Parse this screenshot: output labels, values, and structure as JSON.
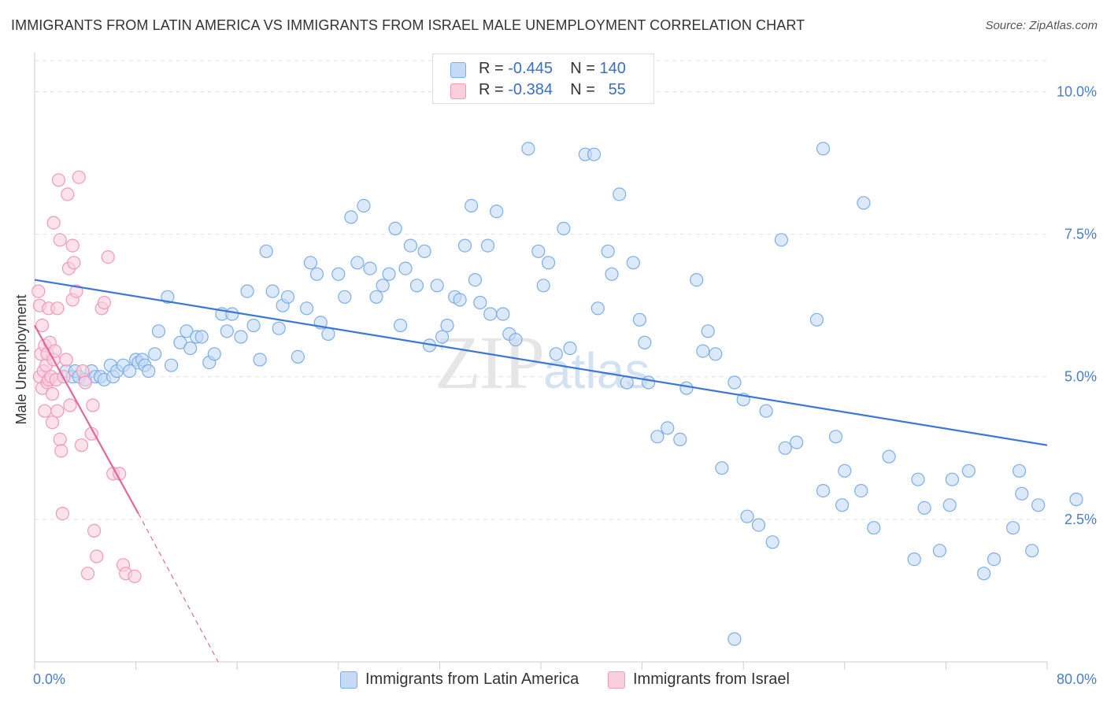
{
  "title": "IMMIGRANTS FROM LATIN AMERICA VS IMMIGRANTS FROM ISRAEL MALE UNEMPLOYMENT CORRELATION CHART",
  "source": "Source: ZipAtlas.com",
  "watermark": {
    "zip": "ZIP",
    "atlas": "atlas"
  },
  "legend": [
    {
      "r_label": "R =",
      "r_value": "-0.445",
      "n_label": "N =",
      "n_value": "140"
    },
    {
      "r_label": "R =",
      "r_value": "-0.384",
      "n_label": "N =",
      "n_value": "55"
    }
  ],
  "chart_data": {
    "type": "scatter",
    "title": "IMMIGRANTS FROM LATIN AMERICA VS IMMIGRANTS FROM ISRAEL MALE UNEMPLOYMENT CORRELATION CHART",
    "xlabel": "",
    "ylabel": "Male Unemployment",
    "xlim": [
      0,
      80
    ],
    "ylim": [
      0,
      10.6
    ],
    "x_tick_labels": [
      "0.0%",
      "80.0%"
    ],
    "y_ticks": [
      2.5,
      5.0,
      7.5,
      10.0
    ],
    "y_tick_labels": [
      "2.5%",
      "5.0%",
      "7.5%",
      "10.0%"
    ],
    "grid": true,
    "legend_position": "top-center",
    "series": [
      {
        "name": "Immigrants from Latin America",
        "color": "#7baee8",
        "fill": "#c5daf5",
        "trend": {
          "x": [
            0,
            80
          ],
          "y": [
            6.7,
            3.8
          ],
          "color": "#3a78d4"
        },
        "points": [
          [
            2.5,
            5.1
          ],
          [
            3.0,
            5.0
          ],
          [
            3.2,
            5.1
          ],
          [
            3.5,
            5.0
          ],
          [
            4.0,
            4.95
          ],
          [
            4.5,
            5.1
          ],
          [
            4.8,
            5.0
          ],
          [
            5.2,
            5.0
          ],
          [
            5.5,
            4.95
          ],
          [
            6.0,
            5.2
          ],
          [
            6.2,
            5.0
          ],
          [
            6.5,
            5.1
          ],
          [
            7.0,
            5.2
          ],
          [
            7.5,
            5.1
          ],
          [
            8.0,
            5.3
          ],
          [
            8.2,
            5.25
          ],
          [
            8.5,
            5.3
          ],
          [
            8.7,
            5.2
          ],
          [
            9.0,
            5.1
          ],
          [
            9.5,
            5.4
          ],
          [
            9.8,
            5.8
          ],
          [
            10.5,
            6.4
          ],
          [
            10.8,
            5.2
          ],
          [
            11.5,
            5.6
          ],
          [
            12.0,
            5.8
          ],
          [
            12.3,
            5.5
          ],
          [
            12.8,
            5.7
          ],
          [
            13.2,
            5.7
          ],
          [
            13.8,
            5.25
          ],
          [
            14.2,
            5.4
          ],
          [
            14.8,
            6.1
          ],
          [
            15.2,
            5.8
          ],
          [
            15.6,
            6.1
          ],
          [
            16.3,
            5.7
          ],
          [
            16.8,
            6.5
          ],
          [
            17.3,
            5.9
          ],
          [
            17.8,
            5.3
          ],
          [
            18.3,
            7.2
          ],
          [
            18.8,
            6.5
          ],
          [
            19.3,
            5.85
          ],
          [
            19.6,
            6.25
          ],
          [
            20.0,
            6.4
          ],
          [
            20.8,
            5.35
          ],
          [
            21.5,
            6.2
          ],
          [
            21.8,
            7.0
          ],
          [
            22.3,
            6.8
          ],
          [
            22.6,
            5.95
          ],
          [
            23.2,
            5.75
          ],
          [
            24.0,
            6.8
          ],
          [
            24.5,
            6.4
          ],
          [
            25.0,
            7.8
          ],
          [
            25.5,
            7.0
          ],
          [
            26.0,
            8.0
          ],
          [
            26.5,
            6.9
          ],
          [
            27.0,
            6.4
          ],
          [
            27.5,
            6.6
          ],
          [
            28.0,
            6.8
          ],
          [
            28.5,
            7.6
          ],
          [
            28.9,
            5.9
          ],
          [
            29.3,
            6.9
          ],
          [
            29.7,
            7.3
          ],
          [
            30.2,
            6.6
          ],
          [
            30.8,
            7.2
          ],
          [
            31.2,
            5.55
          ],
          [
            31.8,
            6.6
          ],
          [
            32.2,
            5.7
          ],
          [
            32.6,
            5.9
          ],
          [
            33.2,
            6.4
          ],
          [
            33.6,
            6.35
          ],
          [
            34.0,
            7.3
          ],
          [
            34.5,
            8.0
          ],
          [
            34.8,
            6.7
          ],
          [
            35.2,
            6.3
          ],
          [
            35.8,
            7.3
          ],
          [
            36.0,
            6.1
          ],
          [
            36.5,
            7.9
          ],
          [
            37.0,
            6.1
          ],
          [
            37.5,
            5.75
          ],
          [
            38.0,
            5.65
          ],
          [
            39.0,
            9.0
          ],
          [
            39.8,
            7.2
          ],
          [
            40.2,
            6.6
          ],
          [
            40.6,
            7.0
          ],
          [
            41.2,
            5.4
          ],
          [
            41.8,
            7.6
          ],
          [
            42.3,
            5.5
          ],
          [
            43.5,
            8.9
          ],
          [
            44.2,
            8.9
          ],
          [
            44.5,
            6.2
          ],
          [
            45.3,
            7.2
          ],
          [
            45.6,
            6.8
          ],
          [
            46.2,
            8.2
          ],
          [
            46.8,
            4.9
          ],
          [
            47.3,
            7.0
          ],
          [
            47.8,
            6.0
          ],
          [
            48.2,
            5.6
          ],
          [
            48.5,
            4.9
          ],
          [
            49.2,
            3.95
          ],
          [
            50.0,
            4.1
          ],
          [
            51.0,
            3.9
          ],
          [
            51.5,
            4.8
          ],
          [
            52.3,
            6.7
          ],
          [
            52.8,
            5.45
          ],
          [
            53.2,
            5.8
          ],
          [
            53.8,
            5.4
          ],
          [
            54.3,
            3.4
          ],
          [
            55.3,
            4.9
          ],
          [
            56.0,
            4.6
          ],
          [
            56.3,
            2.55
          ],
          [
            57.2,
            2.4
          ],
          [
            57.8,
            4.4
          ],
          [
            58.3,
            2.1
          ],
          [
            59.0,
            7.4
          ],
          [
            59.3,
            3.75
          ],
          [
            60.2,
            3.85
          ],
          [
            61.8,
            6.0
          ],
          [
            62.3,
            9.0
          ],
          [
            62.3,
            3.0
          ],
          [
            63.3,
            3.95
          ],
          [
            63.8,
            2.75
          ],
          [
            64.0,
            3.35
          ],
          [
            65.3,
            3.0
          ],
          [
            65.5,
            8.05
          ],
          [
            66.3,
            2.35
          ],
          [
            67.5,
            3.6
          ],
          [
            69.5,
            1.8
          ],
          [
            69.8,
            3.2
          ],
          [
            70.3,
            2.7
          ],
          [
            71.5,
            1.95
          ],
          [
            72.3,
            2.75
          ],
          [
            72.5,
            3.2
          ],
          [
            73.8,
            3.35
          ],
          [
            75.0,
            1.55
          ],
          [
            75.8,
            1.8
          ],
          [
            77.3,
            2.35
          ],
          [
            77.8,
            3.35
          ],
          [
            78.0,
            2.95
          ],
          [
            78.8,
            1.95
          ],
          [
            79.3,
            2.75
          ],
          [
            82.3,
            2.85
          ],
          [
            55.3,
            0.4
          ]
        ]
      },
      {
        "name": "Immigrants from Israel",
        "color": "#f099b6",
        "fill": "#f9cfdd",
        "trend": {
          "x": [
            0,
            8.2
          ],
          "y": [
            5.9,
            2.6
          ],
          "color": "#e0679a"
        },
        "trend_extension": {
          "x": [
            8.2,
            14.5
          ],
          "y": [
            2.6,
            0.0
          ]
        },
        "points": [
          [
            0.3,
            6.5
          ],
          [
            0.4,
            6.25
          ],
          [
            0.4,
            5.0
          ],
          [
            0.5,
            5.4
          ],
          [
            0.6,
            4.8
          ],
          [
            0.6,
            5.9
          ],
          [
            0.7,
            5.1
          ],
          [
            0.8,
            4.4
          ],
          [
            0.8,
            5.55
          ],
          [
            0.9,
            5.2
          ],
          [
            1.0,
            4.9
          ],
          [
            1.0,
            5.4
          ],
          [
            1.1,
            6.2
          ],
          [
            1.1,
            4.95
          ],
          [
            1.2,
            5.6
          ],
          [
            1.3,
            5.0
          ],
          [
            1.4,
            4.7
          ],
          [
            1.4,
            4.2
          ],
          [
            1.5,
            5.3
          ],
          [
            1.5,
            7.7
          ],
          [
            1.6,
            5.45
          ],
          [
            1.7,
            4.95
          ],
          [
            1.8,
            6.2
          ],
          [
            1.8,
            4.4
          ],
          [
            1.9,
            8.45
          ],
          [
            2.0,
            7.4
          ],
          [
            2.0,
            3.9
          ],
          [
            2.1,
            3.7
          ],
          [
            2.2,
            2.6
          ],
          [
            2.3,
            5.0
          ],
          [
            2.5,
            5.3
          ],
          [
            2.6,
            8.2
          ],
          [
            2.7,
            6.9
          ],
          [
            2.8,
            4.5
          ],
          [
            3.0,
            6.35
          ],
          [
            3.0,
            7.3
          ],
          [
            3.1,
            7.0
          ],
          [
            3.3,
            6.5
          ],
          [
            3.5,
            8.5
          ],
          [
            3.7,
            3.8
          ],
          [
            3.8,
            5.1
          ],
          [
            4.0,
            4.9
          ],
          [
            4.2,
            1.55
          ],
          [
            4.5,
            4.0
          ],
          [
            4.6,
            4.5
          ],
          [
            4.7,
            2.3
          ],
          [
            4.9,
            1.85
          ],
          [
            5.3,
            6.2
          ],
          [
            5.5,
            6.3
          ],
          [
            5.8,
            7.1
          ],
          [
            6.2,
            3.3
          ],
          [
            6.7,
            3.3
          ],
          [
            7.0,
            1.7
          ],
          [
            7.2,
            1.55
          ],
          [
            7.9,
            1.5
          ]
        ]
      }
    ]
  },
  "bottom_legend": [
    {
      "label": "Immigrants from Latin America"
    },
    {
      "label": "Immigrants from Israel"
    }
  ]
}
